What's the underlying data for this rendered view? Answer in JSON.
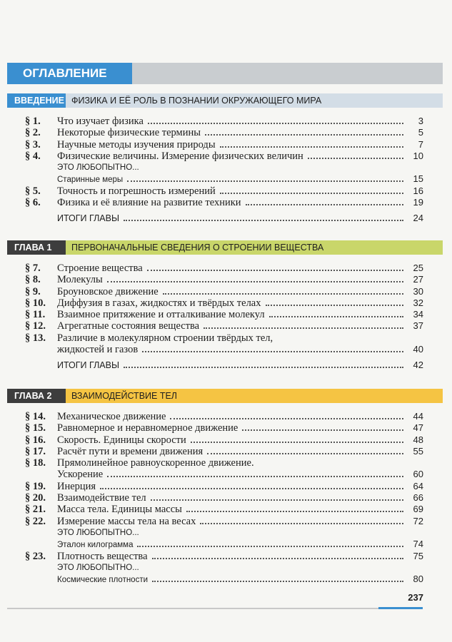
{
  "header": {
    "title": "ОГЛАВЛЕНИЕ"
  },
  "sections": [
    {
      "label": "ВВЕДЕНИЕ",
      "title": "ФИЗИКА И ЕЁ РОЛЬ В ПОЗНАНИИ ОКРУЖАЮЩЕГО МИРА",
      "label_color": "#3a8fd0",
      "band_color": "#d3dde6",
      "label_text_color": "#ffffff",
      "entries": [
        {
          "kind": "paragraph",
          "number": "§ 1.",
          "lines": [
            "Что изучает физика"
          ],
          "page": 3
        },
        {
          "kind": "paragraph",
          "number": "§ 2.",
          "lines": [
            "Некоторые физические термины"
          ],
          "page": 5
        },
        {
          "kind": "paragraph",
          "number": "§ 3.",
          "lines": [
            "Научные методы изучения природы"
          ],
          "page": 7
        },
        {
          "kind": "paragraph",
          "number": "§ 4.",
          "lines": [
            "Физические величины. Измерение физических величин"
          ],
          "page": 10
        },
        {
          "kind": "note",
          "lines": [
            "ЭТО ЛЮБОПЫТНО..."
          ]
        },
        {
          "kind": "extra",
          "lines": [
            "Старинные меры"
          ],
          "page": 15
        },
        {
          "kind": "paragraph",
          "number": "§ 5.",
          "lines": [
            "Точность и погрешность измерений"
          ],
          "page": 16
        },
        {
          "kind": "paragraph",
          "number": "§ 6.",
          "lines": [
            "Физика и её влияние на развитие техники"
          ],
          "page": 19
        },
        {
          "kind": "summary",
          "lines": [
            "ИТОГИ ГЛАВЫ"
          ],
          "page": 24
        }
      ]
    },
    {
      "label": "ГЛАВА 1",
      "title": "ПЕРВОНАЧАЛЬНЫЕ СВЕДЕНИЯ О СТРОЕНИИ ВЕЩЕСТВА",
      "label_color": "#3d3d3d",
      "band_color": "#c9d66a",
      "label_text_color": "#ffffff",
      "entries": [
        {
          "kind": "paragraph",
          "number": "§ 7.",
          "lines": [
            "Строение вещества"
          ],
          "page": 25
        },
        {
          "kind": "paragraph",
          "number": "§ 8.",
          "lines": [
            "Молекулы"
          ],
          "page": 27
        },
        {
          "kind": "paragraph",
          "number": "§ 9.",
          "lines": [
            "Броуновское движение"
          ],
          "page": 30
        },
        {
          "kind": "paragraph",
          "number": "§ 10.",
          "lines": [
            "Диффузия в газах, жидкостях и твёрдых телах"
          ],
          "page": 32
        },
        {
          "kind": "paragraph",
          "number": "§ 11.",
          "lines": [
            "Взаимное притяжение и отталкивание молекул"
          ],
          "page": 34
        },
        {
          "kind": "paragraph",
          "number": "§ 12.",
          "lines": [
            "Агрегатные состояния вещества"
          ],
          "page": 37
        },
        {
          "kind": "paragraph",
          "number": "§ 13.",
          "lines": [
            "Различие в молекулярном строении твёрдых тел,",
            "жидкостей и газов"
          ],
          "page": 40
        },
        {
          "kind": "summary",
          "lines": [
            "ИТОГИ ГЛАВЫ"
          ],
          "page": 42
        }
      ]
    },
    {
      "label": "ГЛАВА 2",
      "title": "ВЗАИМОДЕЙСТВИЕ ТЕЛ",
      "label_color": "#3d3d3d",
      "band_color": "#f5c443",
      "label_text_color": "#ffffff",
      "entries": [
        {
          "kind": "paragraph",
          "number": "§ 14.",
          "lines": [
            "Механическое движение"
          ],
          "page": 44
        },
        {
          "kind": "paragraph",
          "number": "§ 15.",
          "lines": [
            "Равномерное и неравномерное движение"
          ],
          "page": 47
        },
        {
          "kind": "paragraph",
          "number": "§ 16.",
          "lines": [
            "Скорость. Единицы скорости"
          ],
          "page": 48
        },
        {
          "kind": "paragraph",
          "number": "§ 17.",
          "lines": [
            "Расчёт пути и времени движения"
          ],
          "page": 55
        },
        {
          "kind": "paragraph",
          "number": "§ 18.",
          "lines": [
            "Прямолинейное равноускоренное движение.",
            "Ускорение"
          ],
          "page": 60
        },
        {
          "kind": "paragraph",
          "number": "§ 19.",
          "lines": [
            "Инерция"
          ],
          "page": 64
        },
        {
          "kind": "paragraph",
          "number": "§ 20.",
          "lines": [
            "Взаимодействие тел"
          ],
          "page": 66
        },
        {
          "kind": "paragraph",
          "number": "§ 21.",
          "lines": [
            "Масса тела. Единицы массы"
          ],
          "page": 69
        },
        {
          "kind": "paragraph",
          "number": "§ 22.",
          "lines": [
            "Измерение массы тела на весах"
          ],
          "page": 72
        },
        {
          "kind": "note",
          "lines": [
            "ЭТО ЛЮБОПЫТНО..."
          ]
        },
        {
          "kind": "extra",
          "lines": [
            "Эталон килограмма"
          ],
          "page": 74
        },
        {
          "kind": "paragraph",
          "number": "§ 23.",
          "lines": [
            "Плотность вещества"
          ],
          "page": 75
        },
        {
          "kind": "note",
          "lines": [
            "ЭТО ЛЮБОПЫТНО..."
          ]
        },
        {
          "kind": "extra",
          "lines": [
            "Космические плотности"
          ],
          "page": 80
        }
      ]
    }
  ],
  "footer": {
    "page": "237"
  }
}
